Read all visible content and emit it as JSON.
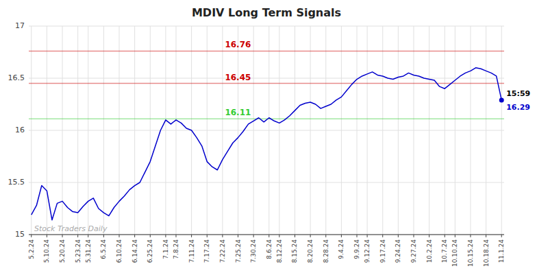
{
  "chart_data": {
    "type": "line",
    "title": "MDIV Long Term Signals",
    "color": "#0000cc",
    "marker": "last",
    "grid": true,
    "ylim": [
      15,
      17
    ],
    "yticks": [
      15,
      15.5,
      16,
      16.5,
      17
    ],
    "categories": [
      "5.2.24",
      null,
      null,
      "5.10.24",
      null,
      null,
      "5.20.24",
      null,
      null,
      "5.23.24",
      null,
      "5.31.24",
      null,
      null,
      "6.5.24",
      null,
      null,
      "6.10.24",
      null,
      null,
      "6.14.24",
      null,
      null,
      "6.25.24",
      null,
      null,
      "7.1.24",
      null,
      "7.8.24",
      null,
      null,
      "7.11.24",
      null,
      null,
      "7.17.24",
      null,
      null,
      "7.22.24",
      null,
      null,
      "7.25.24",
      null,
      null,
      "7.30.24",
      null,
      null,
      "8.6.24",
      null,
      "8.12.24",
      null,
      null,
      "8.15.24",
      null,
      null,
      "8.20.24",
      null,
      null,
      "8.28.24",
      null,
      null,
      "9.4.24",
      null,
      null,
      "9.9.24",
      null,
      "9.12.24",
      null,
      null,
      "9.17.24",
      null,
      null,
      "9.24.24",
      null,
      null,
      "9.27.24",
      null,
      null,
      "10.2.24",
      null,
      null,
      "10.7.24",
      null,
      "10.10.24",
      null,
      null,
      "10.15.24",
      null,
      null,
      "10.18.24",
      null,
      null,
      "11.1.24"
    ],
    "values": [
      15.19,
      15.28,
      15.47,
      15.42,
      15.14,
      15.3,
      15.32,
      15.26,
      15.22,
      15.21,
      15.27,
      15.32,
      15.35,
      15.25,
      15.21,
      15.18,
      15.26,
      15.32,
      15.37,
      15.43,
      15.47,
      15.5,
      15.6,
      15.7,
      15.85,
      16.0,
      16.1,
      16.06,
      16.1,
      16.07,
      16.02,
      16.0,
      15.93,
      15.85,
      15.7,
      15.65,
      15.62,
      15.72,
      15.8,
      15.88,
      15.93,
      15.99,
      16.06,
      16.09,
      16.12,
      16.08,
      16.12,
      16.09,
      16.07,
      16.1,
      16.14,
      16.19,
      16.24,
      16.26,
      16.27,
      16.25,
      16.21,
      16.23,
      16.25,
      16.29,
      16.32,
      16.38,
      16.44,
      16.49,
      16.52,
      16.54,
      16.56,
      16.53,
      16.52,
      16.5,
      16.49,
      16.51,
      16.52,
      16.55,
      16.53,
      16.52,
      16.5,
      16.49,
      16.48,
      16.42,
      16.4,
      16.44,
      16.48,
      16.52,
      16.55,
      16.57,
      16.6,
      16.59,
      16.57,
      16.55,
      16.52,
      16.29
    ],
    "reference_lines": [
      {
        "value": 16.76,
        "label": "16.76",
        "color": "#cc0000"
      },
      {
        "value": 16.45,
        "label": "16.45",
        "color": "#cc0000"
      },
      {
        "value": 16.11,
        "label": "16.11",
        "color": "#33cc33"
      }
    ],
    "annotations": [
      {
        "text": "15:59",
        "y": 16.29,
        "position": "above"
      },
      {
        "text": "16.29",
        "y": 16.29,
        "position": "below"
      }
    ],
    "watermark": "Stock Traders Daily"
  }
}
